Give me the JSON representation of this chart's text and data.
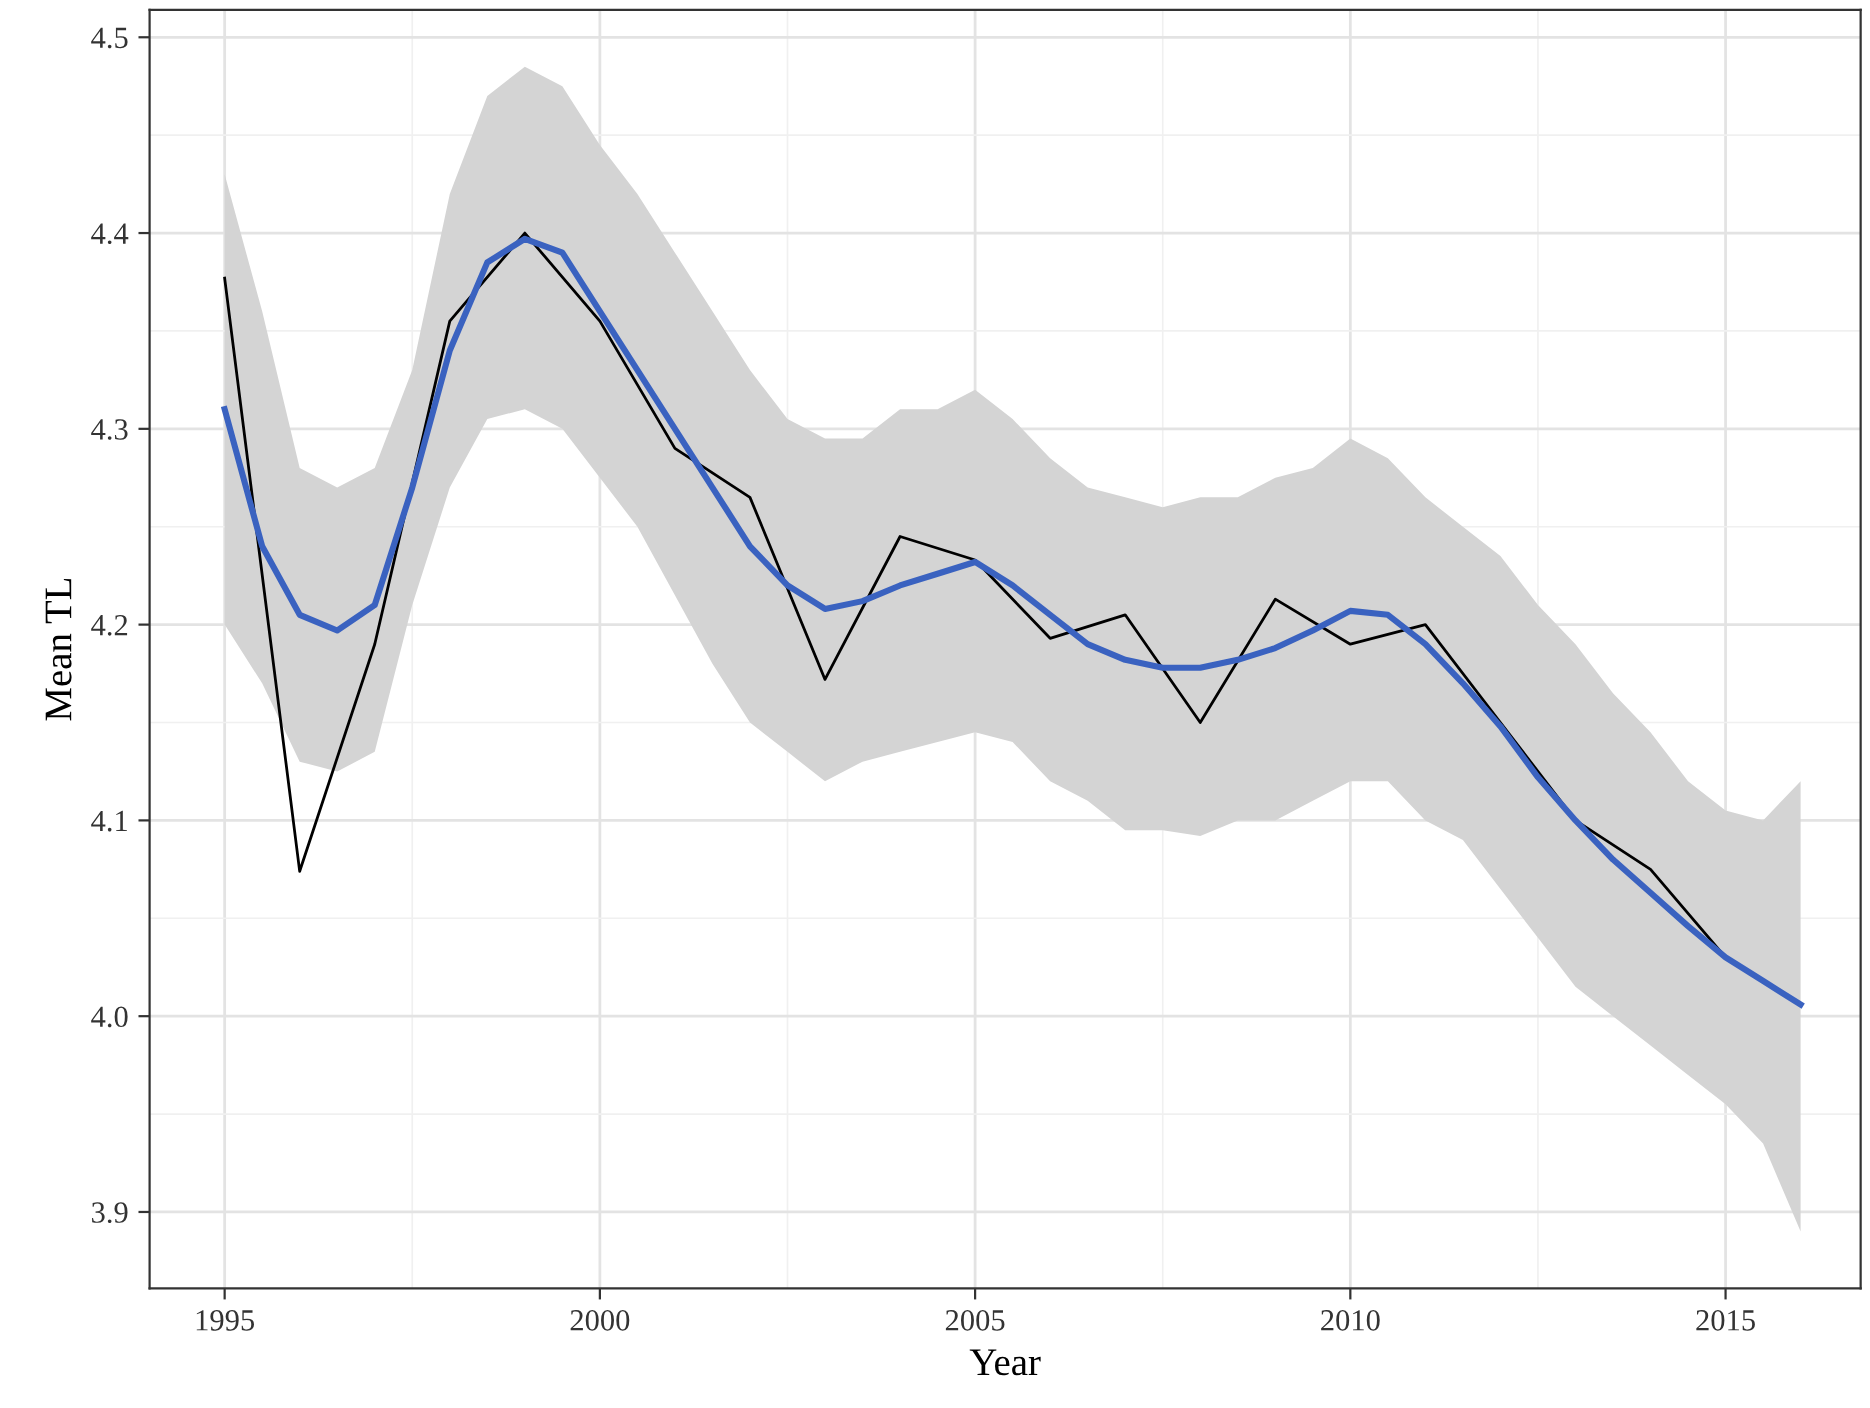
{
  "chart_data": {
    "type": "line",
    "xlabel": "Year",
    "ylabel": "Mean TL",
    "xlim": [
      1994.0,
      2016.8
    ],
    "ylim": [
      3.861,
      4.514
    ],
    "xticks": [
      1995,
      2000,
      2005,
      2010,
      2015
    ],
    "yticks": [
      3.9,
      {
        "value": 4.0,
        "label": "4.0"
      },
      4.1,
      4.2,
      4.3,
      4.4,
      4.5
    ],
    "grid": true,
    "series": [
      {
        "color": "#000000",
        "x": [
          1995,
          1996,
          1997,
          1998,
          1999,
          2000,
          2001,
          2002,
          2003,
          2004,
          2005,
          2006,
          2007,
          2008,
          2009,
          2010,
          2011,
          2012,
          2013,
          2014,
          2015,
          2016
        ],
        "values": [
          4.377,
          4.074,
          4.19,
          4.355,
          4.4,
          4.355,
          4.29,
          4.265,
          4.172,
          4.245,
          4.233,
          4.193,
          4.205,
          4.15,
          4.213,
          4.19,
          4.2,
          4.15,
          4.1,
          4.075,
          4.03,
          4.006
        ]
      },
      {
        "color": "#3a62c0",
        "x": [
          1995,
          1995.5,
          1996,
          1996.5,
          1997,
          1997.5,
          1998,
          1998.5,
          1999,
          1999.5,
          2000,
          2000.5,
          2001,
          2001.5,
          2002,
          2002.5,
          2003,
          2003.5,
          2004,
          2004.5,
          2005,
          2005.5,
          2006,
          2006.5,
          2007,
          2007.5,
          2008,
          2008.5,
          2009,
          2009.5,
          2010,
          2010.5,
          2011,
          2011.5,
          2012,
          2012.5,
          2013,
          2013.5,
          2014,
          2014.5,
          2015,
          2015.5,
          2016
        ],
        "values": [
          4.31,
          4.24,
          4.205,
          4.197,
          4.21,
          4.27,
          4.34,
          4.385,
          4.397,
          4.39,
          4.36,
          4.33,
          4.3,
          4.27,
          4.24,
          4.22,
          4.208,
          4.212,
          4.22,
          4.226,
          4.232,
          4.22,
          4.205,
          4.19,
          4.182,
          4.178,
          4.178,
          4.182,
          4.188,
          4.197,
          4.207,
          4.205,
          4.19,
          4.17,
          4.148,
          4.122,
          4.1,
          4.08,
          4.063,
          4.046,
          4.03,
          4.018,
          4.006
        ],
        "upper": [
          4.43,
          4.36,
          4.28,
          4.27,
          4.28,
          4.33,
          4.42,
          4.47,
          4.485,
          4.475,
          4.445,
          4.42,
          4.39,
          4.36,
          4.33,
          4.305,
          4.295,
          4.295,
          4.31,
          4.31,
          4.32,
          4.305,
          4.285,
          4.27,
          4.265,
          4.26,
          4.265,
          4.265,
          4.275,
          4.28,
          4.295,
          4.285,
          4.265,
          4.25,
          4.235,
          4.21,
          4.19,
          4.165,
          4.145,
          4.12,
          4.105,
          4.1,
          4.12
        ],
        "lower": [
          4.2,
          4.17,
          4.13,
          4.125,
          4.135,
          4.21,
          4.27,
          4.305,
          4.31,
          4.3,
          4.275,
          4.25,
          4.215,
          4.18,
          4.15,
          4.135,
          4.12,
          4.13,
          4.135,
          4.14,
          4.145,
          4.14,
          4.12,
          4.11,
          4.095,
          4.095,
          4.092,
          4.1,
          4.1,
          4.11,
          4.12,
          4.12,
          4.1,
          4.09,
          4.065,
          4.04,
          4.015,
          4.0,
          3.985,
          3.97,
          3.955,
          3.935,
          3.89
        ]
      }
    ]
  }
}
